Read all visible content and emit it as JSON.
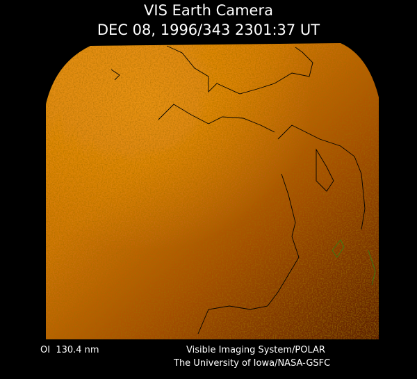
{
  "header": {
    "title": "VIS Earth Camera",
    "timestamp": "DEC 08, 1996/343 2301:37 UT"
  },
  "footer": {
    "wavelength": "OI  130.4 nm",
    "instrument": "Visible Imaging System/POLAR",
    "credit": "The University of Iowa/NASA-GSFC"
  }
}
